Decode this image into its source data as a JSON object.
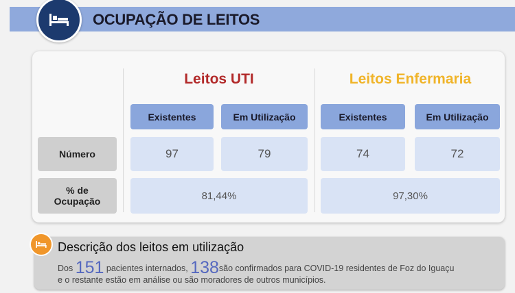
{
  "header": {
    "title": "OCUPAÇÃO DE LEITOS",
    "icon": "bed-icon"
  },
  "groups": [
    {
      "title": "Leitos UTI",
      "color": "#b22a2a",
      "columns": [
        "Existentes",
        "Em Utilização"
      ],
      "numbers": [
        "97",
        "79"
      ],
      "occupancy": "81,44%"
    },
    {
      "title": "Leitos Enfermaria",
      "color": "#f0b429",
      "columns": [
        "Existentes",
        "Em Utilização"
      ],
      "numbers": [
        "74",
        "72"
      ],
      "occupancy": "97,30%"
    }
  ],
  "rows": {
    "number_label": "Número",
    "occupancy_label_1": "% de",
    "occupancy_label_2": "Ocupação"
  },
  "description": {
    "title": "Descrição dos leitos em utilização",
    "icon": "bed-icon",
    "pre": "Dos ",
    "total": "151",
    "mid": " pacientes internados, ",
    "confirmed": "138",
    "post": "são confirmados para COVID-19 residentes de Foz do Iguaçu",
    "line2": "e o restante estão em análise ou são moradores de outros municípios."
  }
}
